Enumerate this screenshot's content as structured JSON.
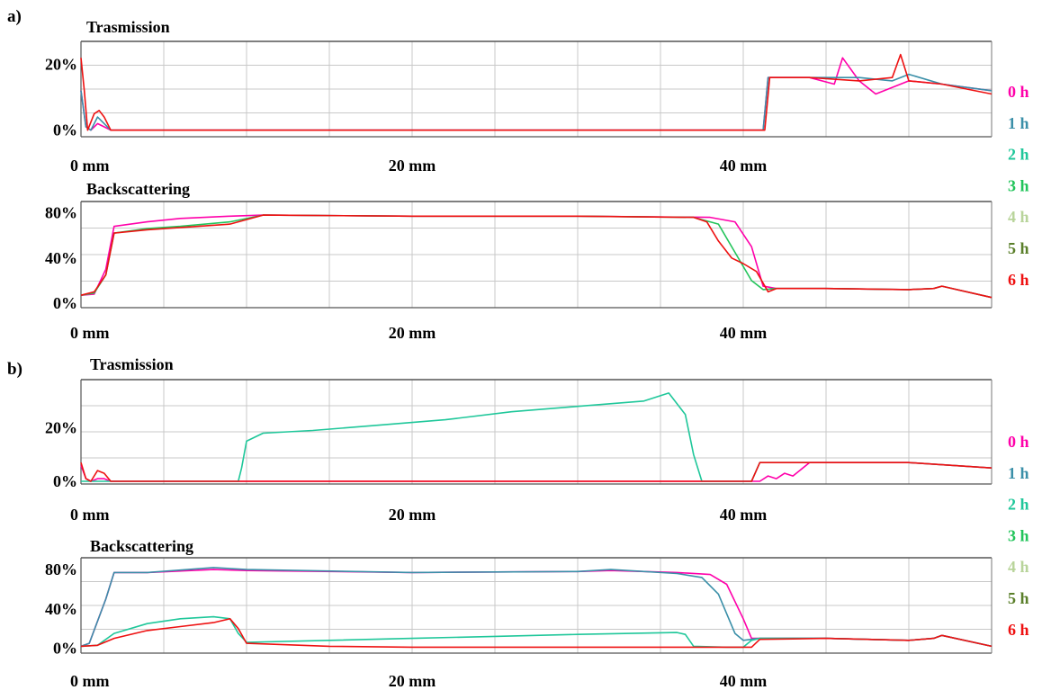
{
  "panel_labels": [
    "a)",
    "b)"
  ],
  "legend": [
    {
      "label": "0 h",
      "color": "#ff00aa"
    },
    {
      "label": "1 h",
      "color": "#3a8fa8"
    },
    {
      "label": "2 h",
      "color": "#1fc79a"
    },
    {
      "label": "3 h",
      "color": "#22c45a"
    },
    {
      "label": "4 h",
      "color": "#b8d49a"
    },
    {
      "label": "5 h",
      "color": "#5a7f2a"
    },
    {
      "label": "6 h",
      "color": "#ee1111"
    }
  ],
  "chart_data": [
    {
      "type": "line",
      "title": "Trasmission",
      "panel": "a)",
      "x_ticks": [
        "0 mm",
        "20 mm",
        "40 mm"
      ],
      "y_ticks": [
        "20%",
        "0%"
      ],
      "xlim": [
        0,
        55
      ],
      "ylim": [
        -2,
        27
      ],
      "grid": true,
      "series": [
        {
          "name": "0 h",
          "color": "#ff00aa",
          "x": [
            0,
            0.3,
            0.6,
            1,
            1.4,
            1.8,
            40,
            41.2,
            41.5,
            44,
            45.5,
            46,
            47,
            48,
            50,
            52,
            55
          ],
          "y": [
            12,
            1,
            0,
            2,
            1,
            0,
            0,
            0,
            16,
            16,
            14,
            22,
            15,
            11,
            15,
            14,
            12
          ]
        },
        {
          "name": "1 h",
          "color": "#3a8fa8",
          "x": [
            0,
            0.3,
            0.6,
            1,
            1.4,
            1.8,
            40,
            41.2,
            41.5,
            44,
            47,
            49,
            50,
            52,
            55
          ],
          "y": [
            12,
            1,
            0,
            4,
            2,
            0,
            0,
            0,
            16,
            16,
            16,
            15,
            17,
            14,
            12
          ]
        },
        {
          "name": "6 h",
          "color": "#ee1111",
          "x": [
            0,
            0.2,
            0.4,
            0.8,
            1.1,
            1.4,
            1.8,
            40,
            41.3,
            41.6,
            44,
            47,
            49,
            49.5,
            50,
            52,
            55
          ],
          "y": [
            22,
            12,
            0,
            5,
            6,
            4,
            0,
            0,
            0,
            16,
            16,
            15,
            16,
            23,
            15,
            14,
            11
          ]
        }
      ]
    },
    {
      "type": "line",
      "title": "Backscattering",
      "panel": "a)",
      "x_ticks": [
        "0 mm",
        "20 mm",
        "40 mm"
      ],
      "y_ticks": [
        "80%",
        "40%",
        "0%"
      ],
      "xlim": [
        0,
        55
      ],
      "ylim": [
        -4,
        90
      ],
      "grid": true,
      "series": [
        {
          "name": "0 h",
          "color": "#ff00aa",
          "x": [
            0,
            0.8,
            1.5,
            2,
            4,
            6,
            9,
            11,
            20,
            30,
            38,
            39.5,
            40.5,
            41.2,
            42,
            45,
            50,
            51.5,
            52,
            55
          ],
          "y": [
            7,
            8,
            30,
            68,
            72,
            75,
            77,
            78,
            77,
            77,
            76,
            72,
            50,
            15,
            13,
            13,
            12,
            13,
            15,
            5
          ]
        },
        {
          "name": "3 h",
          "color": "#22c45a",
          "x": [
            0,
            0.8,
            1.5,
            2,
            4,
            6,
            9,
            11,
            20,
            30,
            37,
            38.5,
            39.5,
            40.5,
            41.2,
            42,
            45,
            50,
            51.5,
            52,
            55
          ],
          "y": [
            7,
            9,
            25,
            62,
            66,
            68,
            72,
            78,
            77,
            77,
            76,
            70,
            45,
            20,
            12,
            13,
            13,
            12,
            13,
            15,
            5
          ]
        },
        {
          "name": "6 h",
          "color": "#ee1111",
          "x": [
            0,
            0.8,
            1.5,
            2,
            4,
            6,
            9,
            11,
            20,
            30,
            37,
            37.8,
            38.5,
            39.3,
            40,
            40.8,
            41.5,
            42,
            45,
            50,
            51.5,
            52,
            55
          ],
          "y": [
            7,
            10,
            25,
            62,
            65,
            67,
            70,
            78,
            77,
            77,
            76,
            72,
            55,
            40,
            35,
            28,
            10,
            13,
            13,
            12,
            13,
            15,
            5
          ]
        }
      ]
    },
    {
      "type": "line",
      "title": "Trasmission",
      "panel": "b)",
      "x_ticks": [
        "0 mm",
        "20 mm",
        "40 mm"
      ],
      "y_ticks": [
        "20%",
        "0%"
      ],
      "xlim": [
        0,
        55
      ],
      "ylim": [
        -1,
        38
      ],
      "grid": true,
      "series": [
        {
          "name": "0 h",
          "color": "#ff00aa",
          "x": [
            0,
            0.3,
            0.6,
            1,
            1.4,
            1.8,
            40,
            41,
            41.5,
            42,
            42.5,
            43,
            44,
            47,
            50,
            55
          ],
          "y": [
            6,
            1,
            0,
            1,
            1,
            0,
            0,
            0,
            2,
            1,
            3,
            2,
            7,
            7,
            7,
            5
          ]
        },
        {
          "name": "2 h",
          "color": "#1fc79a",
          "x": [
            0,
            0.5,
            9.5,
            9.7,
            10,
            11,
            14,
            18,
            22,
            26,
            30,
            34,
            35.5,
            36.5,
            37,
            37.5,
            40,
            40.5,
            41,
            45,
            50,
            55
          ],
          "y": [
            0,
            0,
            0,
            5,
            15,
            18,
            19,
            21,
            23,
            26,
            28,
            30,
            33,
            25,
            10,
            0,
            0,
            0,
            7,
            7,
            7,
            5
          ]
        },
        {
          "name": "6 h",
          "color": "#ee1111",
          "x": [
            0,
            0.3,
            0.6,
            1,
            1.4,
            1.8,
            40,
            40.5,
            41,
            45,
            50,
            55
          ],
          "y": [
            7,
            1,
            0,
            4,
            3,
            0,
            0,
            0,
            7,
            7,
            7,
            5
          ]
        }
      ]
    },
    {
      "type": "line",
      "title": "Backscattering",
      "panel": "b)",
      "x_ticks": [
        "0 mm",
        "20 mm",
        "40 mm"
      ],
      "y_ticks": [
        "80%",
        "40%",
        "0%"
      ],
      "xlim": [
        0,
        55
      ],
      "ylim": [
        -5,
        92
      ],
      "grid": true,
      "series": [
        {
          "name": "0 h",
          "color": "#ff00aa",
          "x": [
            0,
            0.5,
            1.5,
            2,
            4,
            8,
            10,
            20,
            30,
            32,
            36,
            38,
            39,
            40,
            40.5,
            41,
            45,
            50,
            51.5,
            52,
            55
          ],
          "y": [
            2,
            5,
            50,
            77,
            77,
            80,
            79,
            77,
            78,
            79,
            77,
            75,
            65,
            30,
            10,
            10,
            10,
            8,
            10,
            13,
            2
          ]
        },
        {
          "name": "1 h",
          "color": "#3a8fa8",
          "x": [
            0,
            0.5,
            1.5,
            2,
            4,
            8,
            10,
            20,
            30,
            32,
            36,
            37.5,
            38.5,
            39.5,
            40,
            41,
            45,
            50,
            51.5,
            52,
            55
          ],
          "y": [
            2,
            5,
            50,
            77,
            77,
            82,
            80,
            77,
            78,
            80,
            76,
            72,
            55,
            15,
            8,
            10,
            10,
            8,
            10,
            13,
            2
          ]
        },
        {
          "name": "2 h",
          "color": "#1fc79a",
          "x": [
            0,
            1,
            2,
            4,
            6,
            8,
            9,
            9.5,
            10,
            15,
            20,
            25,
            30,
            36,
            36.5,
            37,
            39,
            40,
            40.5,
            41,
            45,
            50,
            51.5,
            52,
            55
          ],
          "y": [
            2,
            3,
            15,
            25,
            30,
            32,
            30,
            15,
            6,
            8,
            10,
            12,
            14,
            16,
            14,
            2,
            1,
            1,
            8,
            10,
            10,
            8,
            10,
            13,
            2
          ]
        },
        {
          "name": "6 h",
          "color": "#ee1111",
          "x": [
            0,
            1,
            2,
            4,
            6,
            8,
            9,
            9.5,
            10,
            15,
            20,
            30,
            40,
            40.5,
            41,
            45,
            50,
            51.5,
            52,
            55
          ],
          "y": [
            2,
            3,
            10,
            18,
            22,
            26,
            30,
            20,
            5,
            2,
            1,
            1,
            1,
            1,
            9,
            10,
            8,
            10,
            13,
            2
          ]
        }
      ]
    }
  ]
}
